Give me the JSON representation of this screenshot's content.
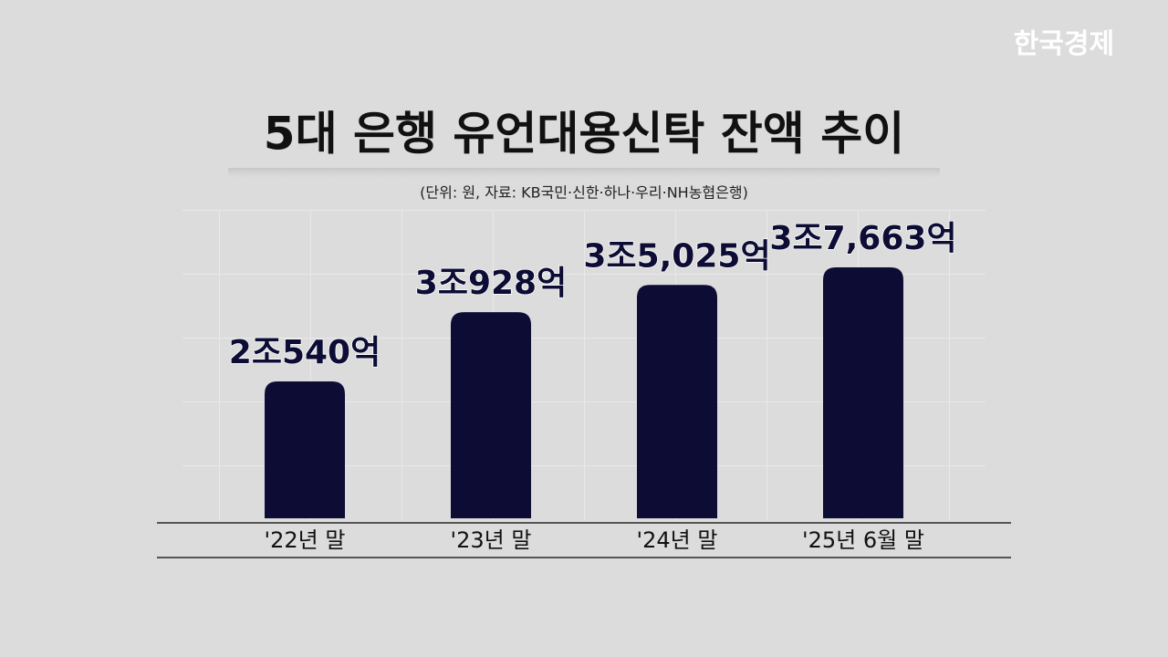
{
  "watermark": "한국경제",
  "chart_data": {
    "type": "bar",
    "title": "5대 은행 유언대용신탁 잔액 추이",
    "subtitle": "(단위: 원, 자료: KB국민·신한·하나·우리·NH농협은행)",
    "categories": [
      "'22년 말",
      "'23년 말",
      "'24년 말",
      "'25년 6월 말"
    ],
    "values": [
      20540,
      30928,
      35025,
      37663
    ],
    "value_labels": [
      "2조540억",
      "3조928억",
      "3조5,025억",
      "3조7,663억"
    ],
    "color": "#0c0c35"
  }
}
